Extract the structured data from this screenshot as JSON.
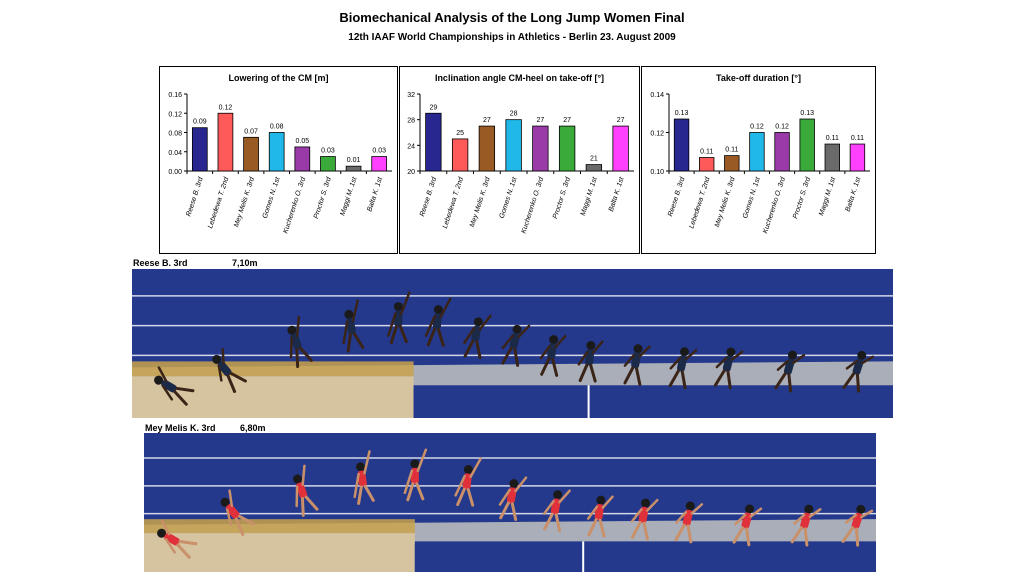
{
  "header": {
    "title": "Biomechanical Analysis of the Long Jump Women Final",
    "subtitle": "12th IAAF World Championships in Athletics - Berlin  23. August 2009"
  },
  "chart_data": [
    {
      "type": "bar",
      "title": "Lowering of the CM  [m]",
      "categories": [
        "Reese B. 3rd",
        "Lebedewa T. 2nd",
        "Mey Melis K. 3rd",
        "Gomes N. 1st",
        "Kucherenko O. 3rd",
        "Proctor S. 3rd",
        "Maggi M. 1st",
        "Balta K. 1st"
      ],
      "values": [
        0.09,
        0.12,
        0.07,
        0.08,
        0.05,
        0.03,
        0.01,
        0.03
      ],
      "value_labels": [
        "0.09",
        "0.12",
        "0.07",
        "0.08",
        "0.05",
        "0.03",
        "0.01",
        "0.03"
      ],
      "ylim": [
        0,
        0.16
      ],
      "yticks": [
        "0.00",
        "0.04",
        "0.08",
        "0.12",
        "0.16"
      ],
      "ytick_values": [
        0,
        0.04,
        0.08,
        0.12,
        0.16
      ],
      "colors": [
        "#27278f",
        "#ff5a5a",
        "#9a5a23",
        "#1fb8e8",
        "#9a3aa8",
        "#3aaa3a",
        "#6a6a6a",
        "#ff40ff"
      ],
      "grid": false
    },
    {
      "type": "bar",
      "title": "Inclination angle CM-heel on take-off [°]",
      "categories": [
        "Reese B. 3rd",
        "Lebedewa T. 2nd",
        "Mey Melis K. 3rd",
        "Gomes N. 1st",
        "Kucherenko O. 3rd",
        "Proctor S. 3rd",
        "Maggi M. 1st",
        "Balta K. 1st"
      ],
      "values": [
        29,
        25,
        27,
        28,
        27,
        27,
        21,
        27
      ],
      "value_labels": [
        "29",
        "25",
        "27",
        "28",
        "27",
        "27",
        "21",
        "27"
      ],
      "ylim": [
        20,
        32
      ],
      "yticks": [
        "20",
        "24",
        "28",
        "32"
      ],
      "ytick_values": [
        20,
        24,
        28,
        32
      ],
      "colors": [
        "#27278f",
        "#ff5a5a",
        "#9a5a23",
        "#1fb8e8",
        "#9a3aa8",
        "#3aaa3a",
        "#6a6a6a",
        "#ff40ff"
      ],
      "grid": false
    },
    {
      "type": "bar",
      "title": "Take-off duration [°]",
      "categories": [
        "Reese B. 3rd",
        "Lebedewa T. 2nd",
        "Mey Melis K. 3rd",
        "Gomes N. 1st",
        "Kucherenko O. 3rd",
        "Proctor S. 3rd",
        "Maggi M. 1st",
        "Balta K. 1st"
      ],
      "values": [
        0.13,
        0.11,
        0.11,
        0.12,
        0.12,
        0.13,
        0.11,
        0.11
      ],
      "value_labels": [
        "0.13",
        "0.11",
        "0.11",
        "0.12",
        "0.12",
        "0.13",
        "0.11",
        "0.11"
      ],
      "plot_values": [
        0.127,
        0.107,
        0.108,
        0.12,
        0.12,
        0.127,
        0.114,
        0.114
      ],
      "ylim": [
        0.1,
        0.14
      ],
      "yticks": [
        "0.10",
        "0.12",
        "0.14"
      ],
      "ytick_values": [
        0.1,
        0.12,
        0.14
      ],
      "colors": [
        "#27278f",
        "#ff5a5a",
        "#9a5a23",
        "#1fb8e8",
        "#9a3aa8",
        "#3aaa3a",
        "#6a6a6a",
        "#ff40ff"
      ],
      "grid": false
    }
  ],
  "sequences": [
    {
      "athlete": "Reese B. 3rd",
      "distance": "7,10m",
      "uniform_color": "#1c2a4a"
    },
    {
      "athlete": "Mey Melis K. 3rd",
      "distance": "6,80m",
      "uniform_color": "#e0303a"
    }
  ],
  "photo_colors": {
    "track": "#24398c",
    "sand": "#d6c3a0",
    "runway": "#a9aeb8",
    "lane_line": "#ffffff"
  }
}
